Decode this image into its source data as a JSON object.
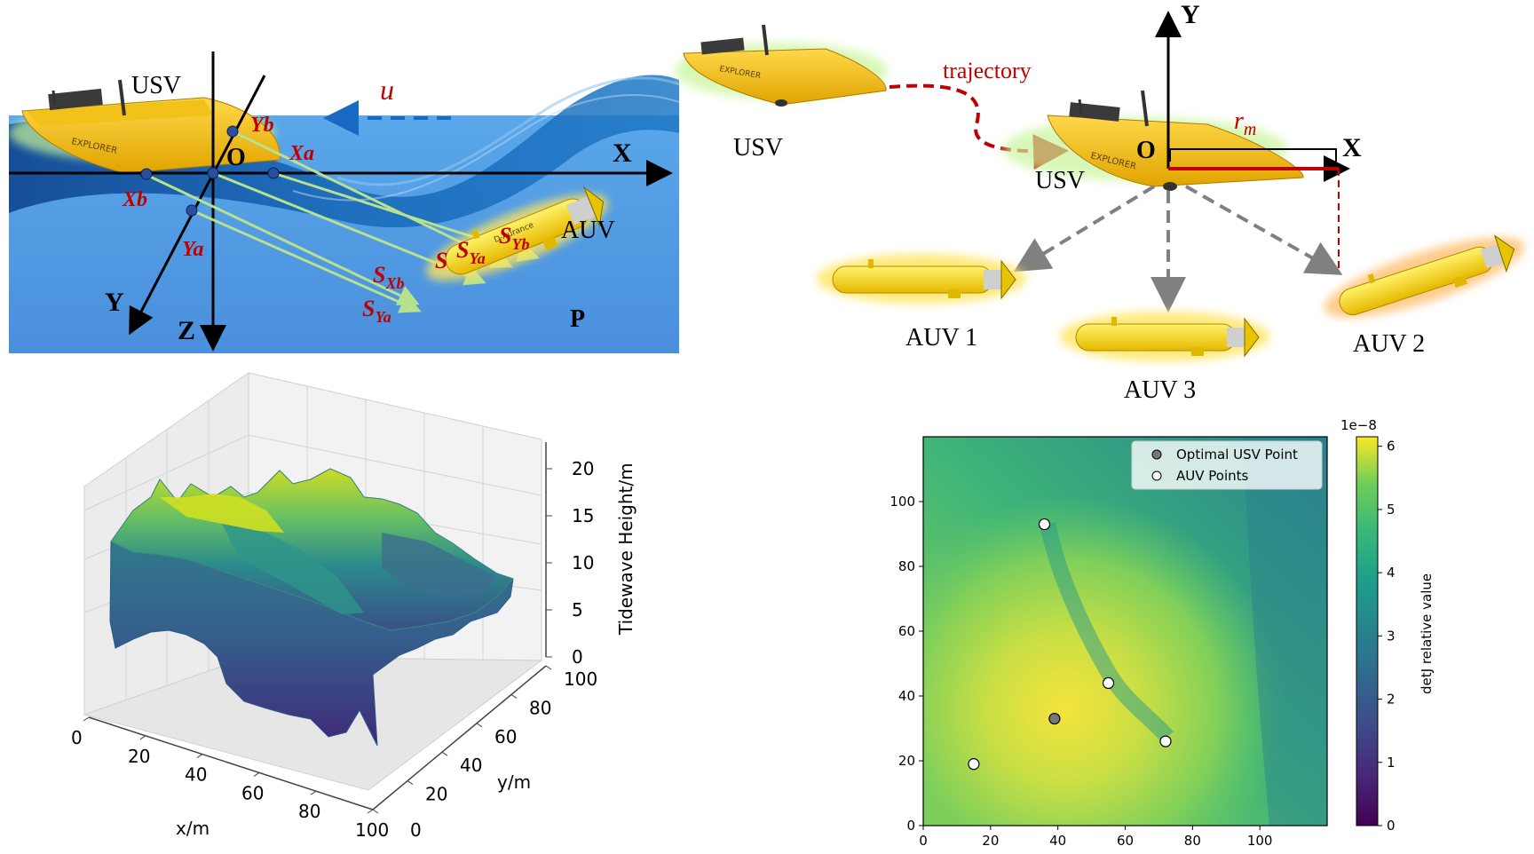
{
  "panel_a": {
    "usv_label": "USV",
    "auv_label": "AUV",
    "origin": "O",
    "axis_x": "X",
    "axis_y": "Y",
    "axis_z": "Z",
    "point_p": "P",
    "velocity": "u",
    "anchor_yb": "Yb",
    "anchor_xa": "Xa",
    "anchor_xb": "Xb",
    "anchor_ya": "Ya",
    "ranges": [
      {
        "base": "S",
        "sub": "Xb"
      },
      {
        "base": "S",
        "sub": "Ya"
      },
      {
        "base": "S",
        "sub": ""
      },
      {
        "base": "S",
        "sub": "Ya"
      },
      {
        "base": "S",
        "sub": "Yb"
      }
    ]
  },
  "panel_b": {
    "usv_start_label": "USV",
    "trajectory_label": "trajectory",
    "usv_label": "USV",
    "origin": "O",
    "axis_x": "X",
    "axis_y": "Y",
    "radius": {
      "base": "r",
      "sub": "m"
    },
    "auvs": [
      "AUV 1",
      "AUV 3",
      "AUV 2"
    ]
  },
  "chart_data": [
    {
      "type": "surface3d",
      "xlabel": "x/m",
      "ylabel": "y/m",
      "zlabel": "Tidewave Height/m",
      "xticks": [
        0,
        20,
        40,
        60,
        80,
        100
      ],
      "yticks": [
        20,
        40,
        60,
        80,
        100
      ],
      "yticks_extra": [
        0
      ],
      "zticks": [
        0,
        5,
        10,
        15,
        20
      ],
      "xlim": [
        0,
        100
      ],
      "ylim": [
        0,
        100
      ],
      "zlim": [
        0,
        22
      ],
      "colormap": "viridis",
      "grid": true
    },
    {
      "type": "heatmap",
      "xticks": [
        0,
        20,
        40,
        60,
        80,
        100
      ],
      "yticks": [
        0,
        20,
        40,
        60,
        80,
        100
      ],
      "xlim": [
        0,
        120
      ],
      "ylim": [
        0,
        120
      ],
      "colorbar_label": "detJ relative value",
      "colorbar_ticks": [
        0,
        1,
        2,
        3,
        4,
        5,
        6
      ],
      "colorbar_exponent": "1e−8",
      "colormap": "viridis",
      "legend": {
        "position": "top-right",
        "entries": [
          {
            "label": "Optimal USV Point",
            "color": "#777777"
          },
          {
            "label": "AUV Points",
            "color": "#ffffff"
          }
        ]
      },
      "optimal_usv": {
        "x": 39,
        "y": 33
      },
      "auv_points": [
        {
          "x": 15,
          "y": 19
        },
        {
          "x": 36,
          "y": 93
        },
        {
          "x": 55,
          "y": 44
        },
        {
          "x": 72,
          "y": 26
        }
      ]
    }
  ]
}
